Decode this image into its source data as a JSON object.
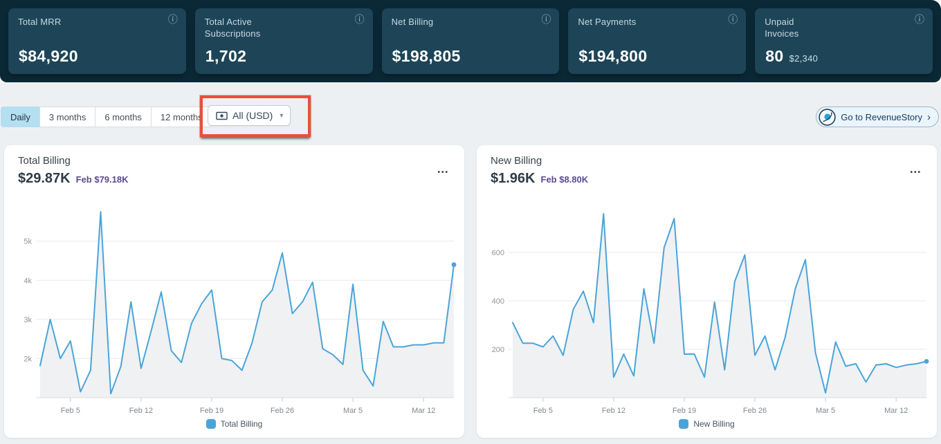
{
  "colors": {
    "band_bg": "#0B2836",
    "kpi_card_bg": "#1D4557",
    "page_bg": "#EDF0F2",
    "tab_selected_bg": "#B4DFF2",
    "annotation_red": "#E8503C",
    "chart_line_blue": "#4AA4D9",
    "period_purple": "#5B4B91"
  },
  "icons": {
    "info": "ⓘ",
    "caret": "▾",
    "chevron": "›",
    "menu": "•••"
  },
  "kpi_cards": [
    {
      "label": "Total MRR",
      "value": "$84,920"
    },
    {
      "label": "Total Active Subscriptions",
      "value": "1,702"
    },
    {
      "label": "Net Billing",
      "value": "$198,805"
    },
    {
      "label": "Net Payments",
      "value": "$194,800"
    },
    {
      "label": "Unpaid Invoices",
      "value": "80",
      "sub_value": "$2,340"
    }
  ],
  "toolbar": {
    "tabs": [
      {
        "label": "Daily",
        "selected": true
      },
      {
        "label": "3 months",
        "selected": false
      },
      {
        "label": "6 months",
        "selected": false
      },
      {
        "label": "12 months",
        "selected": false
      }
    ],
    "currency_filter": {
      "label": "All (USD)"
    },
    "revenuestory_button": {
      "label": "Go to RevenueStory"
    }
  },
  "chart_data": [
    {
      "type": "line",
      "title": "Total Billing",
      "current_value": "$29.87K",
      "period_label": "Feb $79.18K",
      "legend": "Total Billing",
      "line_color": "#4AA4D9",
      "fill_color": "#EFF1F3",
      "ylim": [
        1000,
        5950
      ],
      "ytick_values": [
        2000,
        3000,
        4000,
        5000
      ],
      "ytick_labels": [
        "2k",
        "3k",
        "4k",
        "5k"
      ],
      "xtick_indices": [
        3,
        10,
        17,
        24,
        31,
        38
      ],
      "xtick_labels": [
        "Feb 5",
        "Feb 12",
        "Feb 19",
        "Feb 26",
        "Mar 5",
        "Mar 12"
      ],
      "dates": [
        "Feb 2",
        "Feb 3",
        "Feb 4",
        "Feb 5",
        "Feb 6",
        "Feb 7",
        "Feb 8",
        "Feb 9",
        "Feb 10",
        "Feb 11",
        "Feb 12",
        "Feb 13",
        "Feb 14",
        "Feb 15",
        "Feb 16",
        "Feb 17",
        "Feb 18",
        "Feb 19",
        "Feb 20",
        "Feb 21",
        "Feb 22",
        "Feb 23",
        "Feb 24",
        "Feb 25",
        "Feb 26",
        "Feb 27",
        "Feb 28",
        "Mar 1",
        "Mar 2",
        "Mar 3",
        "Mar 4",
        "Mar 5",
        "Mar 6",
        "Mar 7",
        "Mar 8",
        "Mar 9",
        "Mar 10",
        "Mar 11",
        "Mar 12",
        "Mar 13",
        "Mar 14",
        "Mar 15"
      ],
      "values": [
        1820,
        3000,
        2000,
        2450,
        1150,
        1700,
        5750,
        1100,
        1800,
        3450,
        1750,
        2700,
        3700,
        2200,
        1900,
        2900,
        3400,
        3750,
        2000,
        1950,
        1700,
        2400,
        3450,
        3750,
        4700,
        3150,
        3450,
        3950,
        2250,
        2100,
        1850,
        3900,
        1700,
        1300,
        2950,
        2300,
        2300,
        2350,
        2350,
        2400,
        2400,
        4400
      ]
    },
    {
      "type": "line",
      "title": "New Billing",
      "current_value": "$1.96K",
      "period_label": "Feb $8.80K",
      "legend": "New Billing",
      "line_color": "#4AA4D9",
      "fill_color": "#EFF1F3",
      "ylim": [
        0,
        800
      ],
      "ytick_values": [
        200,
        400,
        600
      ],
      "ytick_labels": [
        "200",
        "400",
        "600"
      ],
      "xtick_indices": [
        3,
        10,
        17,
        24,
        31,
        38
      ],
      "xtick_labels": [
        "Feb 5",
        "Feb 12",
        "Feb 19",
        "Feb 26",
        "Mar 5",
        "Mar 12"
      ],
      "dates": [
        "Feb 2",
        "Feb 3",
        "Feb 4",
        "Feb 5",
        "Feb 6",
        "Feb 7",
        "Feb 8",
        "Feb 9",
        "Feb 10",
        "Feb 11",
        "Feb 12",
        "Feb 13",
        "Feb 14",
        "Feb 15",
        "Feb 16",
        "Feb 17",
        "Feb 18",
        "Feb 19",
        "Feb 20",
        "Feb 21",
        "Feb 22",
        "Feb 23",
        "Feb 24",
        "Feb 25",
        "Feb 26",
        "Feb 27",
        "Feb 28",
        "Mar 1",
        "Mar 2",
        "Mar 3",
        "Mar 4",
        "Mar 5",
        "Mar 6",
        "Mar 7",
        "Mar 8",
        "Mar 9",
        "Mar 10",
        "Mar 11",
        "Mar 12",
        "Mar 13",
        "Mar 14",
        "Mar 15"
      ],
      "values": [
        310,
        225,
        225,
        210,
        255,
        175,
        365,
        440,
        310,
        760,
        85,
        180,
        90,
        450,
        225,
        620,
        740,
        180,
        180,
        85,
        395,
        115,
        480,
        590,
        175,
        255,
        115,
        250,
        450,
        570,
        185,
        20,
        230,
        130,
        140,
        65,
        135,
        140,
        125,
        135,
        140,
        150
      ]
    }
  ]
}
